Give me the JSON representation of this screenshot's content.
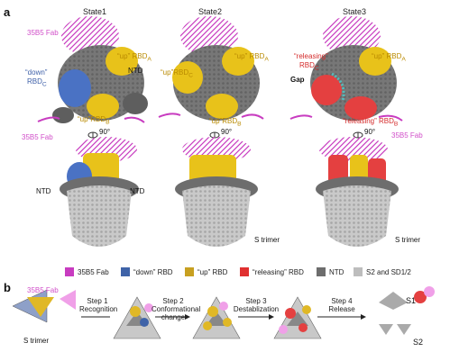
{
  "panel_a": {
    "letter": "a",
    "states": [
      "State1",
      "State2",
      "State3"
    ],
    "labels": {
      "fab_35b5": "35B5 Fab",
      "down_rbd_c_line1": "“down”",
      "down_rbd_c_line2": "RBD",
      "up_rbd_a": "“up” RBD",
      "up_rbd_b": "“up”RBD",
      "ntd": "NTD",
      "releasing_rbd_c_line1": "“releasing”",
      "releasing_rbd_c_line2": "RBD",
      "releasing_rbd_b": "“releasing” RBD",
      "gap": "Gap",
      "rotation": "90°",
      "s_trimer": "S trimer",
      "sub_a": "A",
      "sub_b": "B",
      "sub_c": "C"
    }
  },
  "legend": [
    {
      "label": "35B5 Fab",
      "color": "#c83cc0"
    },
    {
      "label": "“down” RBD",
      "color": "#3f63a8"
    },
    {
      "label": "“up” RBD",
      "color": "#c8a020"
    },
    {
      "label": "“releasing” RBD",
      "color": "#e03030"
    },
    {
      "label": "NTD",
      "color": "#6d6d6d"
    },
    {
      "label": "S2 and SD1/2",
      "color": "#bdbdbd"
    }
  ],
  "panel_b": {
    "letter": "b",
    "fab_label": "35B5 Fab",
    "trimer_label": "S trimer",
    "steps": [
      {
        "title": "Step 1",
        "desc": "Recognition"
      },
      {
        "title": "Step 2",
        "desc": "Conformational change"
      },
      {
        "title": "Step 3",
        "desc": "Destablization"
      },
      {
        "title": "Step 4",
        "desc": "Release"
      }
    ],
    "s1": "S1",
    "s2": "S2"
  }
}
